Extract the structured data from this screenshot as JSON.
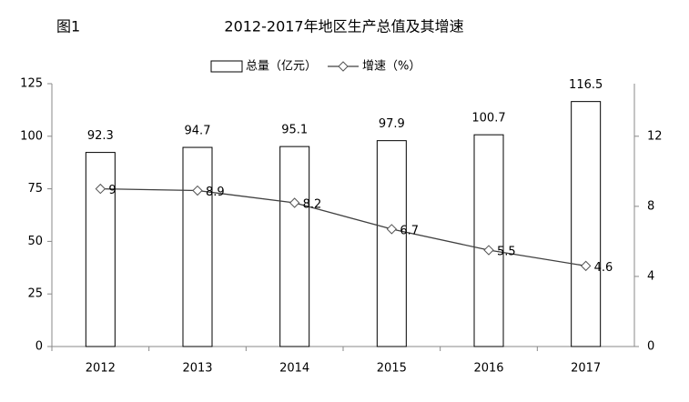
{
  "chart_data": {
    "type": "bar",
    "figure_label": "图1",
    "title": "2012-2017年地区生产总值及其增速",
    "categories": [
      "2012",
      "2013",
      "2014",
      "2015",
      "2016",
      "2017"
    ],
    "series": [
      {
        "name": "总量（亿元）",
        "type": "bar",
        "color": "#ffffff",
        "values": [
          92.3,
          94.7,
          95.1,
          97.9,
          100.7,
          116.5
        ]
      },
      {
        "name": "增速（%）",
        "type": "line",
        "axis": "y2",
        "color": "#404040",
        "values": [
          9,
          8.9,
          8.2,
          6.7,
          5.5,
          4.6
        ]
      }
    ],
    "ylim": [
      0,
      125
    ],
    "yticks": [
      0,
      25,
      50,
      75,
      100,
      125
    ],
    "y2lim": [
      0,
      15
    ],
    "y2ticks": [
      0,
      4,
      8,
      12
    ],
    "grid": false,
    "legend": "top"
  }
}
